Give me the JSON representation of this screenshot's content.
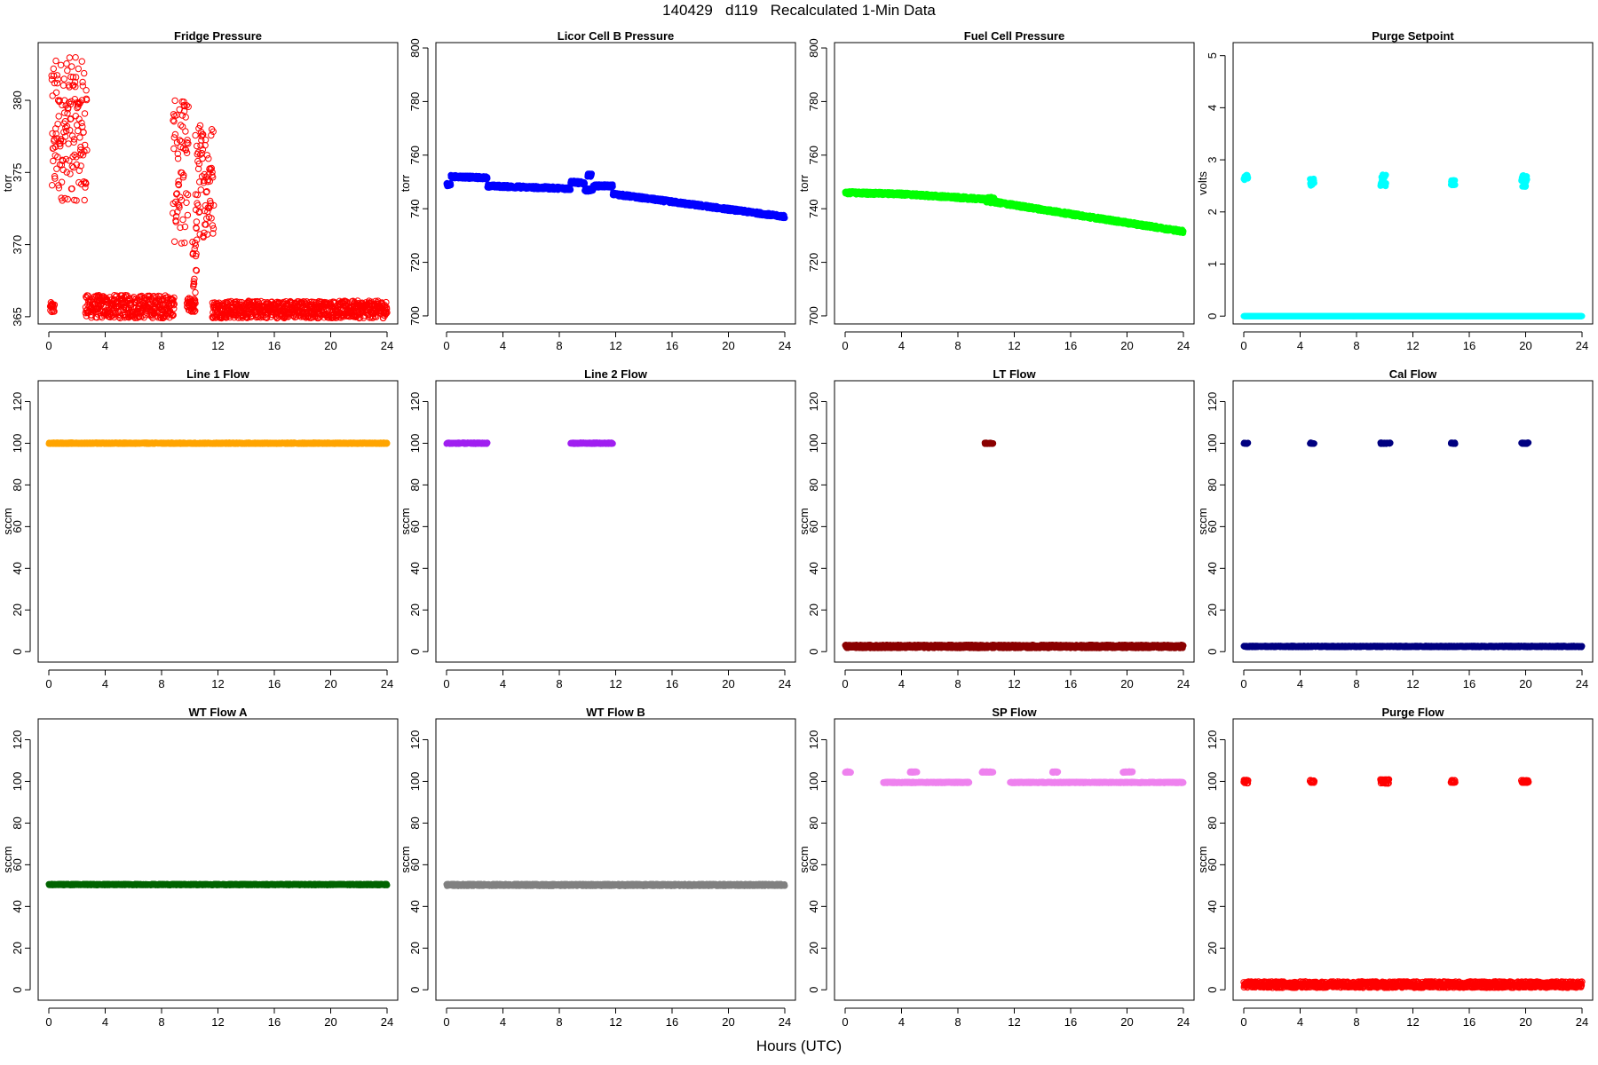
{
  "title": "140429   d119   Recalculated 1-Min Data",
  "xlabel": "Hours (UTC)",
  "colors": {
    "red": "#ff0000",
    "blue": "#0000ff",
    "green": "#00ff00",
    "cyan": "#00ffff",
    "orange": "#ffa500",
    "purple": "#a020f0",
    "darkred": "#8b0000",
    "navy": "#000080",
    "darkgreen": "#006400",
    "gray": "#808080",
    "violet": "#ee82ee"
  },
  "chart_data": [
    {
      "type": "scatter",
      "title": "Fridge Pressure",
      "ylabel": "torr",
      "color": "#ff0000",
      "marker": "open",
      "xlim": [
        0,
        24
      ],
      "ylim": [
        364.5,
        384
      ],
      "yticks": [
        365,
        370,
        375,
        380
      ],
      "xticks": [
        0,
        4,
        8,
        12,
        16,
        20,
        24
      ],
      "segments": [
        {
          "x": [
            0.1,
            0.4
          ],
          "y": 365.6,
          "spread": 0.4
        },
        {
          "x": [
            0.2,
            2.7
          ],
          "y": 378.0,
          "spread": 5.0
        },
        {
          "x": [
            2.6,
            8.9
          ],
          "y": 365.7,
          "spread": 0.8
        },
        {
          "x": [
            8.8,
            9.9
          ],
          "y": 375.0,
          "spread": 5.0
        },
        {
          "x": [
            9.8,
            10.4
          ],
          "y": 365.8,
          "spread": 0.5
        },
        {
          "x": [
            10.2,
            10.5
          ],
          "y": 368.0,
          "spread": 2.5
        },
        {
          "x": [
            10.4,
            11.7
          ],
          "y": 374.5,
          "spread": 4.0
        },
        {
          "x": [
            11.6,
            24.0
          ],
          "y": 365.5,
          "spread": 0.6
        }
      ]
    },
    {
      "type": "scatter",
      "title": "Licor Cell B Pressure",
      "ylabel": "torr",
      "color": "#0000ff",
      "marker": "filled",
      "xlim": [
        0,
        24
      ],
      "ylim": [
        697,
        802
      ],
      "yticks": [
        700,
        720,
        740,
        760,
        780,
        800
      ],
      "xticks": [
        0,
        4,
        8,
        12,
        16,
        20,
        24
      ],
      "segments": [
        {
          "x": [
            0.0,
            0.3
          ],
          "y": 749,
          "y2": 749,
          "spread": 0.6
        },
        {
          "x": [
            0.3,
            2.9
          ],
          "y": 752,
          "y2": 751.5,
          "spread": 0.6
        },
        {
          "x": [
            2.9,
            8.8
          ],
          "y": 748.5,
          "y2": 747.5,
          "spread": 0.6
        },
        {
          "x": [
            8.8,
            9.8
          ],
          "y": 750,
          "y2": 749.5,
          "spread": 0.6
        },
        {
          "x": [
            9.8,
            10.4
          ],
          "y": 747,
          "y2": 747,
          "spread": 0.6
        },
        {
          "x": [
            10.0,
            10.3
          ],
          "y": 752.5,
          "y2": 752.5,
          "spread": 0.6
        },
        {
          "x": [
            10.4,
            11.8
          ],
          "y": 748.5,
          "y2": 748.5,
          "spread": 0.6
        },
        {
          "x": [
            11.8,
            24.0
          ],
          "y": 745.5,
          "y2": 737,
          "spread": 0.6
        }
      ]
    },
    {
      "type": "scatter",
      "title": "Fuel Cell Pressure",
      "ylabel": "torr",
      "color": "#00ff00",
      "marker": "filled",
      "xlim": [
        0,
        24
      ],
      "ylim": [
        697,
        802
      ],
      "yticks": [
        700,
        720,
        740,
        760,
        780,
        800
      ],
      "xticks": [
        0,
        4,
        8,
        12,
        16,
        20,
        24
      ],
      "segments": [
        {
          "x": [
            0.0,
            4.0
          ],
          "y": 746,
          "y2": 745.5,
          "spread": 0.6
        },
        {
          "x": [
            4.0,
            10.0
          ],
          "y": 745.5,
          "y2": 743.5,
          "spread": 0.6
        },
        {
          "x": [
            10.0,
            10.6
          ],
          "y": 743.5,
          "y2": 743,
          "spread": 1.2
        },
        {
          "x": [
            10.6,
            16.0
          ],
          "y": 742.5,
          "y2": 738,
          "spread": 0.6
        },
        {
          "x": [
            16.0,
            24.0
          ],
          "y": 738,
          "y2": 731.5,
          "spread": 0.6
        }
      ]
    },
    {
      "type": "scatter",
      "title": "Purge Setpoint",
      "ylabel": "volts",
      "color": "#00ffff",
      "marker": "filled",
      "xlim": [
        0,
        24
      ],
      "ylim": [
        -0.15,
        5.25
      ],
      "yticks": [
        0,
        1,
        2,
        3,
        4,
        5
      ],
      "xticks": [
        0,
        4,
        8,
        12,
        16,
        20,
        24
      ],
      "segments": [
        {
          "x": [
            0.0,
            24.0
          ],
          "y": 0,
          "spread": 0.0
        },
        {
          "x": [
            0.0,
            0.3
          ],
          "y": 2.66,
          "spread": 0.05
        },
        {
          "x": [
            4.7,
            5.0
          ],
          "y": 2.57,
          "spread": 0.08
        },
        {
          "x": [
            9.7,
            10.1
          ],
          "y": 2.6,
          "spread": 0.12
        },
        {
          "x": [
            14.7,
            15.0
          ],
          "y": 2.56,
          "spread": 0.05
        },
        {
          "x": [
            19.7,
            20.1
          ],
          "y": 2.6,
          "spread": 0.12
        }
      ]
    },
    {
      "type": "scatter",
      "title": "Line 1 Flow",
      "ylabel": "sccm",
      "color": "#ffa500",
      "marker": "filled",
      "xlim": [
        0,
        24
      ],
      "ylim": [
        -5,
        130
      ],
      "yticks": [
        0,
        20,
        40,
        60,
        80,
        100,
        120
      ],
      "xticks": [
        0,
        4,
        8,
        12,
        16,
        20,
        24
      ],
      "segments": [
        {
          "x": [
            0.0,
            24.0
          ],
          "y": 100,
          "spread": 0.3
        }
      ]
    },
    {
      "type": "scatter",
      "title": "Line 2 Flow",
      "ylabel": "sccm",
      "color": "#a020f0",
      "marker": "filled",
      "xlim": [
        0,
        24
      ],
      "ylim": [
        -5,
        130
      ],
      "yticks": [
        0,
        20,
        40,
        60,
        80,
        100,
        120
      ],
      "xticks": [
        0,
        4,
        8,
        12,
        16,
        20,
        24
      ],
      "segments": [
        {
          "x": [
            0.0,
            2.9
          ],
          "y": 100,
          "spread": 0.3
        },
        {
          "x": [
            8.8,
            11.8
          ],
          "y": 100,
          "spread": 0.3
        }
      ]
    },
    {
      "type": "scatter",
      "title": "LT Flow",
      "ylabel": "sccm",
      "color": "#8b0000",
      "marker": "filled",
      "xlim": [
        0,
        24
      ],
      "ylim": [
        -5,
        130
      ],
      "yticks": [
        0,
        20,
        40,
        60,
        80,
        100,
        120
      ],
      "xticks": [
        0,
        4,
        8,
        12,
        16,
        20,
        24
      ],
      "segments": [
        {
          "x": [
            0.0,
            24.0
          ],
          "y": 2.5,
          "spread": 0.8
        },
        {
          "x": [
            9.9,
            10.5
          ],
          "y": 100,
          "spread": 0.3
        }
      ]
    },
    {
      "type": "scatter",
      "title": "Cal Flow",
      "ylabel": "sccm",
      "color": "#000080",
      "marker": "filled",
      "xlim": [
        0,
        24
      ],
      "ylim": [
        -5,
        130
      ],
      "yticks": [
        0,
        20,
        40,
        60,
        80,
        100,
        120
      ],
      "xticks": [
        0,
        4,
        8,
        12,
        16,
        20,
        24
      ],
      "segments": [
        {
          "x": [
            0.0,
            24.0
          ],
          "y": 2.5,
          "spread": 0.3
        },
        {
          "x": [
            0.0,
            0.3
          ],
          "y": 100,
          "spread": 0.3
        },
        {
          "x": [
            4.7,
            5.0
          ],
          "y": 100,
          "spread": 0.3
        },
        {
          "x": [
            9.7,
            10.4
          ],
          "y": 100,
          "spread": 0.3
        },
        {
          "x": [
            14.7,
            15.0
          ],
          "y": 100,
          "spread": 0.3
        },
        {
          "x": [
            19.7,
            20.2
          ],
          "y": 100,
          "spread": 0.3
        }
      ]
    },
    {
      "type": "scatter",
      "title": "WT Flow A",
      "ylabel": "sccm",
      "color": "#006400",
      "marker": "filled",
      "xlim": [
        0,
        24
      ],
      "ylim": [
        -5,
        130
      ],
      "yticks": [
        0,
        20,
        40,
        60,
        80,
        100,
        120
      ],
      "xticks": [
        0,
        4,
        8,
        12,
        16,
        20,
        24
      ],
      "segments": [
        {
          "x": [
            0.0,
            24.0
          ],
          "y": 50.5,
          "spread": 0.3
        }
      ]
    },
    {
      "type": "scatter",
      "title": "WT Flow B",
      "ylabel": "sccm",
      "color": "#808080",
      "marker": "filled",
      "xlim": [
        0,
        24
      ],
      "ylim": [
        -5,
        130
      ],
      "yticks": [
        0,
        20,
        40,
        60,
        80,
        100,
        120
      ],
      "xticks": [
        0,
        4,
        8,
        12,
        16,
        20,
        24
      ],
      "segments": [
        {
          "x": [
            0.0,
            24.0
          ],
          "y": 50.3,
          "spread": 0.5
        }
      ]
    },
    {
      "type": "scatter",
      "title": "SP Flow",
      "ylabel": "sccm",
      "color": "#ee82ee",
      "marker": "filled",
      "xlim": [
        0,
        24
      ],
      "ylim": [
        -5,
        130
      ],
      "yticks": [
        0,
        20,
        40,
        60,
        80,
        100,
        120
      ],
      "xticks": [
        0,
        4,
        8,
        12,
        16,
        20,
        24
      ],
      "segments": [
        {
          "x": [
            0.0,
            0.4
          ],
          "y": 104.5,
          "spread": 0.3
        },
        {
          "x": [
            2.7,
            8.8
          ],
          "y": 99.5,
          "spread": 0.3
        },
        {
          "x": [
            4.6,
            5.1
          ],
          "y": 104.5,
          "spread": 0.3
        },
        {
          "x": [
            9.7,
            10.5
          ],
          "y": 104.5,
          "spread": 0.3
        },
        {
          "x": [
            11.7,
            24.0
          ],
          "y": 99.5,
          "spread": 0.3
        },
        {
          "x": [
            14.7,
            15.1
          ],
          "y": 104.5,
          "spread": 0.3
        },
        {
          "x": [
            19.7,
            20.4
          ],
          "y": 104.5,
          "spread": 0.3
        }
      ]
    },
    {
      "type": "scatter",
      "title": "Purge Flow",
      "ylabel": "sccm",
      "color": "#ff0000",
      "marker": "open",
      "xlim": [
        0,
        24
      ],
      "ylim": [
        -5,
        130
      ],
      "yticks": [
        0,
        20,
        40,
        60,
        80,
        100,
        120
      ],
      "xticks": [
        0,
        4,
        8,
        12,
        16,
        20,
        24
      ],
      "segments": [
        {
          "x": [
            0.0,
            24.0
          ],
          "y": 2.5,
          "spread": 1.5
        },
        {
          "x": [
            0.0,
            0.3
          ],
          "y": 100,
          "spread": 1.0
        },
        {
          "x": [
            4.7,
            5.0
          ],
          "y": 100,
          "spread": 0.6
        },
        {
          "x": [
            9.7,
            10.3
          ],
          "y": 100,
          "spread": 1.0
        },
        {
          "x": [
            14.7,
            15.0
          ],
          "y": 100,
          "spread": 0.6
        },
        {
          "x": [
            19.7,
            20.2
          ],
          "y": 100,
          "spread": 0.6
        }
      ]
    }
  ]
}
